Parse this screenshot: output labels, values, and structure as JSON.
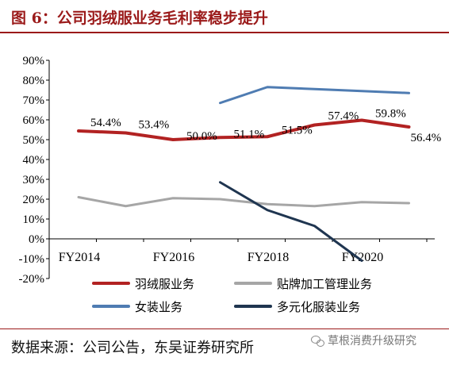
{
  "figure": {
    "title": "图 6：公司羽绒服业务毛利率稳步提升",
    "source": "数据来源：公司公告，东吴证券研究所",
    "watermark": "草根消费升级研究"
  },
  "chart_data": {
    "type": "line",
    "title": "",
    "xlabel": "",
    "ylabel": "",
    "ylim": [
      -20,
      90
    ],
    "y_ticks": [
      "90%",
      "80%",
      "70%",
      "60%",
      "50%",
      "40%",
      "30%",
      "20%",
      "10%",
      "0%",
      "-10%",
      "-20%"
    ],
    "x_tick_labels": [
      "FY2014",
      "FY2016",
      "FY2018",
      "FY2020"
    ],
    "x": [
      "FY2014",
      "FY2015",
      "FY2016",
      "FY2017",
      "FY2018",
      "FY2019",
      "FY2020",
      "FY2021"
    ],
    "series": [
      {
        "name": "羽绒服业务",
        "color": "#b22222",
        "width": 4,
        "values": [
          54.4,
          53.4,
          50.0,
          51.1,
          51.5,
          57.4,
          59.8,
          56.4
        ],
        "labels": [
          "54.4%",
          "53.4%",
          "50.0%",
          "51.1%",
          "51.5%",
          "57.4%",
          "59.8%",
          "56.4%"
        ]
      },
      {
        "name": "贴牌加工管理业务",
        "color": "#a6a6a6",
        "width": 3,
        "values": [
          21,
          16.5,
          20.5,
          20,
          17.5,
          16.5,
          18.5,
          18
        ]
      },
      {
        "name": "女装业务",
        "color": "#4f7cb2",
        "width": 3,
        "values": [
          null,
          null,
          null,
          68.5,
          76.5,
          75.5,
          74.5,
          73.5
        ]
      },
      {
        "name": "多元化服装业务",
        "color": "#1f3550",
        "width": 3,
        "values": [
          null,
          null,
          null,
          28.5,
          14.5,
          6.5,
          -11,
          null
        ]
      }
    ],
    "legend_position": "bottom",
    "grid": false
  }
}
